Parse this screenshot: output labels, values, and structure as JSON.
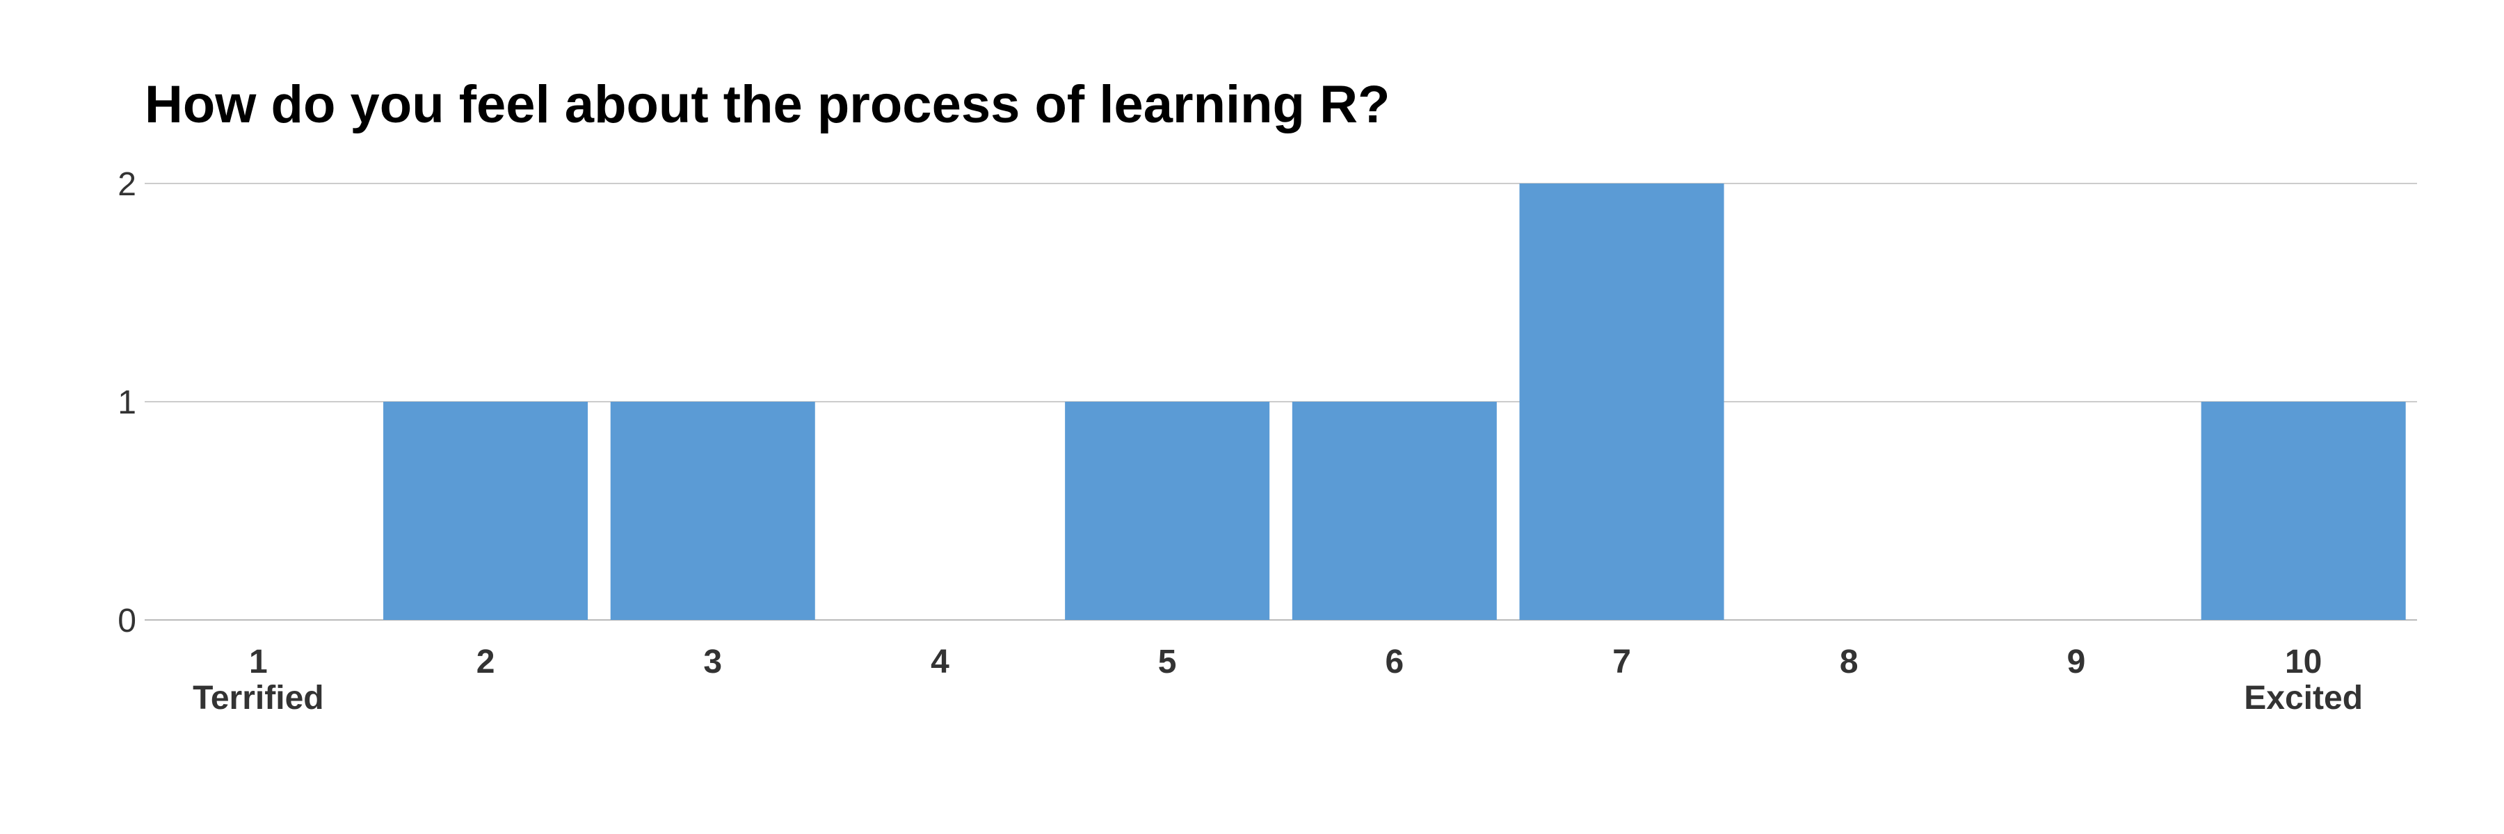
{
  "chart_data": {
    "type": "bar",
    "title": "How do you feel about the process of learning R?",
    "categories": [
      "1",
      "2",
      "3",
      "4",
      "5",
      "6",
      "7",
      "8",
      "9",
      "10"
    ],
    "category_sublabels": [
      "Terrified",
      "",
      "",
      "",
      "",
      "",
      "",
      "",
      "",
      "Excited"
    ],
    "values": [
      0,
      1,
      1,
      0,
      1,
      1,
      2,
      0,
      0,
      1
    ],
    "ylim": [
      0,
      2
    ],
    "yticks": [
      "0",
      "1",
      "2"
    ],
    "xlabel": "",
    "ylabel": "",
    "grid": true,
    "legend": "none",
    "bar_color": "#5b9bd5"
  }
}
